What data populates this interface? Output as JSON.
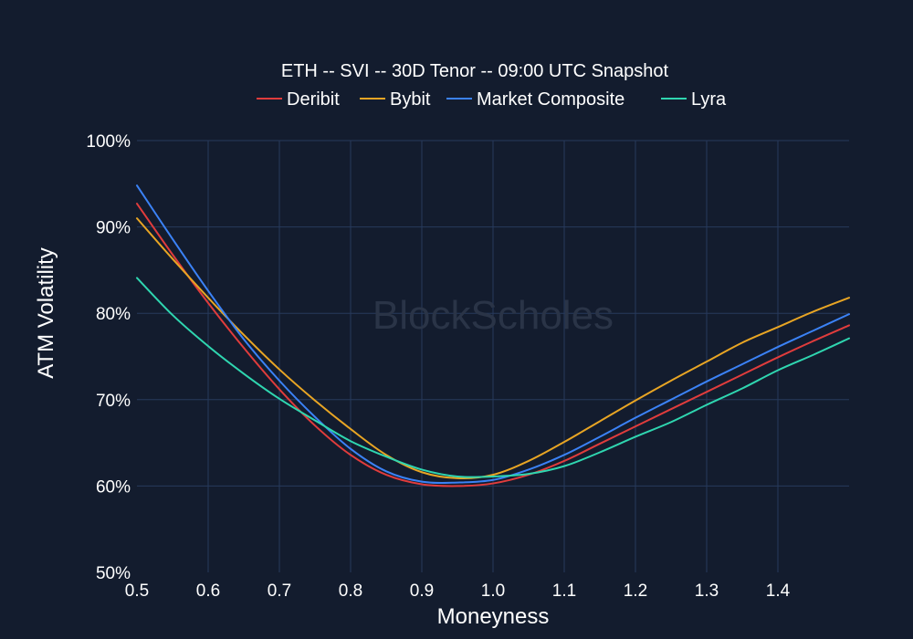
{
  "watermark": "BlockScholes",
  "chart_data": {
    "type": "line",
    "title": "ETH -- SVI -- 30D Tenor -- 09:00 UTC Snapshot",
    "xlabel": "Moneyness",
    "ylabel": "ATM Volatility",
    "xlim": [
      0.5,
      1.5
    ],
    "ylim": [
      50,
      100
    ],
    "x_ticks": [
      0.5,
      0.6,
      0.7,
      0.8,
      0.9,
      1.0,
      1.1,
      1.2,
      1.3,
      1.4
    ],
    "x_tick_labels": [
      "0.5",
      "0.6",
      "0.7",
      "0.8",
      "0.9",
      "1.0",
      "1.1",
      "1.2",
      "1.3",
      "1.4"
    ],
    "y_ticks": [
      50,
      60,
      70,
      80,
      90,
      100
    ],
    "y_tick_labels": [
      "50%",
      "60%",
      "70%",
      "80%",
      "90%",
      "100%"
    ],
    "grid": true,
    "legend_position": "top-center",
    "x": [
      0.5,
      0.55,
      0.6,
      0.65,
      0.7,
      0.75,
      0.8,
      0.85,
      0.9,
      0.95,
      1.0,
      1.05,
      1.1,
      1.15,
      1.2,
      1.25,
      1.3,
      1.35,
      1.4,
      1.45,
      1.5
    ],
    "series": [
      {
        "name": "Deribit",
        "color": "#e03c3c",
        "values": [
          92.7,
          86.8,
          81.2,
          76.0,
          71.2,
          67.0,
          63.6,
          61.3,
          60.2,
          60.0,
          60.3,
          61.3,
          62.9,
          64.9,
          66.9,
          68.9,
          70.9,
          72.9,
          74.9,
          76.8,
          78.6
        ]
      },
      {
        "name": "Bybit",
        "color": "#e8a524",
        "values": [
          91.0,
          86.3,
          81.8,
          77.5,
          73.5,
          69.9,
          66.6,
          63.6,
          61.6,
          60.9,
          61.3,
          62.9,
          65.1,
          67.5,
          69.9,
          72.2,
          74.4,
          76.6,
          78.4,
          80.2,
          81.8
        ]
      },
      {
        "name": "Market Composite",
        "color": "#3b82f6",
        "values": [
          94.8,
          88.6,
          82.6,
          77.0,
          72.2,
          68.0,
          64.3,
          61.7,
          60.5,
          60.4,
          60.7,
          61.9,
          63.6,
          65.7,
          67.9,
          70.0,
          72.1,
          74.1,
          76.1,
          78.0,
          79.9
        ]
      },
      {
        "name": "Lyra",
        "color": "#2fd6b0",
        "values": [
          84.1,
          79.8,
          76.2,
          73.0,
          70.1,
          67.6,
          65.2,
          63.4,
          61.9,
          61.1,
          61.1,
          61.4,
          62.3,
          63.9,
          65.7,
          67.4,
          69.4,
          71.3,
          73.4,
          75.2,
          77.1
        ]
      }
    ]
  }
}
